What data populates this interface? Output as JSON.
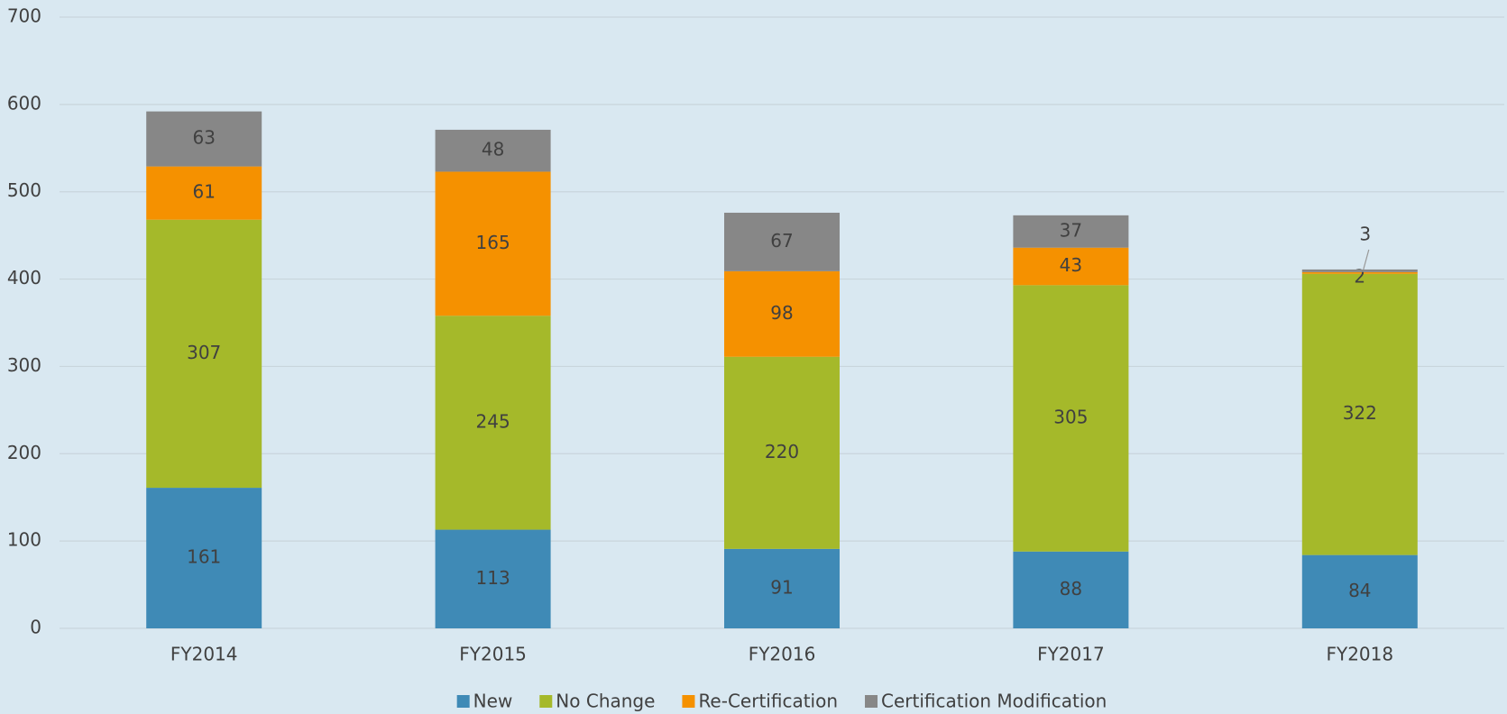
{
  "chart_data": {
    "type": "stacked_bar",
    "categories": [
      "FY2014",
      "FY2015",
      "FY2016",
      "FY2017",
      "FY2018"
    ],
    "series": [
      {
        "name": "New",
        "color": "#3f8ab6",
        "values": [
          161,
          113,
          91,
          88,
          84
        ]
      },
      {
        "name": "No Change",
        "color": "#a5b92a",
        "values": [
          307,
          245,
          220,
          305,
          322
        ]
      },
      {
        "name": "Re-Certification",
        "color": "#f59100",
        "values": [
          61,
          165,
          98,
          43,
          2
        ]
      },
      {
        "name": "Certification Modification",
        "color": "#878787",
        "values": [
          63,
          48,
          67,
          37,
          3
        ]
      }
    ],
    "ylim": [
      0,
      700
    ],
    "yticks": [
      0,
      100,
      200,
      300,
      400,
      500,
      600,
      700
    ],
    "grid": true,
    "legend": "bottom"
  }
}
